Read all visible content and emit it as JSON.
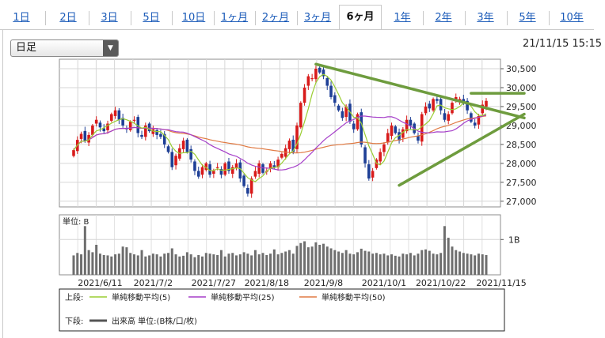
{
  "tabs": [
    {
      "label": "1日",
      "active": false
    },
    {
      "label": "2日",
      "active": false
    },
    {
      "label": "3日",
      "active": false
    },
    {
      "label": "5日",
      "active": false
    },
    {
      "label": "10日",
      "active": false
    },
    {
      "label": "1ヶ月",
      "active": false
    },
    {
      "label": "2ヶ月",
      "active": false
    },
    {
      "label": "3ヶ月",
      "active": false
    },
    {
      "label": "6ヶ月",
      "active": true
    },
    {
      "label": "1年",
      "active": false
    },
    {
      "label": "2年",
      "active": false
    },
    {
      "label": "3年",
      "active": false
    },
    {
      "label": "5年",
      "active": false
    },
    {
      "label": "10年",
      "active": false
    }
  ],
  "interval_select": {
    "value": "日足",
    "arrow": "▼"
  },
  "timestamp": "21/11/15 15:15",
  "chart_data": {
    "type": "candlestick",
    "price_ticks": [
      "30,500",
      "30,000",
      "29,500",
      "29,000",
      "28,500",
      "28,000",
      "27,500",
      "27,000"
    ],
    "price_tick_values": [
      30500,
      30000,
      29500,
      29000,
      28500,
      28000,
      27500,
      27000
    ],
    "ylim": [
      26850,
      30750
    ],
    "x_labels": [
      "2021/6/11",
      "2021/7/2",
      "2021/7/27",
      "2021/8/18",
      "2021/9/8",
      "2021/10/1",
      "2021/10/22",
      "2021/11/15"
    ],
    "x_label_index": [
      7,
      21,
      37,
      51,
      66,
      82,
      97,
      113
    ],
    "volume_unit_label": "単位: B",
    "volume_tick": "1B",
    "volume_tick_value": 1.0,
    "volume_ylim": [
      0,
      1.7
    ],
    "candle_up_color": "#d81b1b",
    "candle_down_color": "#1e3f96",
    "ma5_color": "#9acd32",
    "ma25_color": "#a53ec9",
    "ma50_color": "#e07a43",
    "trendline_color": "#6e9c3e",
    "closes": [
      28350,
      28620,
      28780,
      28600,
      28750,
      29000,
      29150,
      28950,
      28850,
      29050,
      29300,
      29400,
      29150,
      29000,
      28900,
      29100,
      29150,
      28800,
      28700,
      29000,
      28850,
      28900,
      28750,
      28700,
      28500,
      28300,
      27900,
      28200,
      28400,
      28600,
      28300,
      28100,
      27800,
      27650,
      27900,
      28000,
      27700,
      27800,
      27900,
      27700,
      28000,
      27800,
      27900,
      28000,
      27600,
      27400,
      27200,
      27600,
      27800,
      28000,
      27750,
      27800,
      28000,
      27900,
      28100,
      28250,
      28400,
      28600,
      28300,
      29000,
      29600,
      30000,
      30300,
      30250,
      30500,
      30400,
      30300,
      30050,
      29750,
      29600,
      29400,
      29200,
      29500,
      29100,
      28900,
      29300,
      28500,
      28000,
      27600,
      27800,
      28100,
      28300,
      28500,
      28800,
      29000,
      28800,
      28600,
      28900,
      29150,
      29000,
      28800,
      28600,
      29300,
      29500,
      29450,
      29700,
      29650,
      29400,
      29150,
      29300,
      29600,
      29750,
      29700,
      29600,
      29400,
      29100,
      29000,
      29250,
      29550,
      29650
    ],
    "volumes": [
      0.55,
      0.62,
      0.58,
      1.38,
      0.7,
      0.64,
      0.85,
      0.6,
      0.56,
      0.55,
      0.52,
      0.58,
      0.6,
      0.8,
      0.78,
      0.62,
      0.58,
      0.55,
      0.7,
      0.52,
      0.55,
      0.6,
      0.58,
      0.52,
      0.6,
      0.62,
      0.75,
      0.58,
      0.52,
      0.54,
      0.64,
      0.58,
      0.5,
      0.56,
      0.52,
      0.62,
      0.6,
      0.58,
      0.56,
      0.7,
      0.52,
      0.6,
      0.62,
      0.55,
      0.58,
      0.64,
      0.6,
      0.55,
      0.7,
      0.58,
      0.62,
      0.56,
      0.6,
      0.72,
      0.58,
      0.62,
      0.66,
      0.7,
      0.6,
      0.82,
      0.9,
      0.95,
      0.78,
      0.8,
      0.92,
      0.85,
      0.88,
      0.8,
      0.75,
      0.7,
      0.66,
      0.62,
      0.7,
      0.6,
      0.58,
      0.64,
      0.74,
      0.68,
      0.66,
      0.6,
      0.62,
      0.58,
      0.6,
      0.55,
      0.58,
      0.54,
      0.52,
      0.6,
      0.58,
      0.62,
      0.55,
      0.6,
      0.7,
      0.72,
      0.68,
      0.6,
      0.58,
      0.62,
      1.38,
      1.05,
      0.8,
      0.7,
      0.66,
      0.62,
      0.6,
      0.58,
      0.55,
      0.6,
      0.58,
      0.56
    ],
    "trendlines": [
      {
        "from": [
          64,
          30620
        ],
        "to": [
          124,
          29200
        ]
      },
      {
        "from": [
          86,
          27420
        ],
        "to": [
          124,
          29300
        ]
      },
      {
        "from": [
          105,
          29850
        ],
        "to": [
          124,
          29850
        ]
      }
    ],
    "legend_top_label": "上段:",
    "legend_bottom_label": "下段:",
    "legend_series": [
      {
        "name": "単純移動平均(5)",
        "color": "#9acd32"
      },
      {
        "name": "単純移動平均(25)",
        "color": "#a53ec9"
      },
      {
        "name": "単純移動平均(50)",
        "color": "#e07a43"
      }
    ],
    "legend_volume": {
      "name": "出来高 単位:(B株/口/枚)",
      "color": "#555555"
    }
  }
}
